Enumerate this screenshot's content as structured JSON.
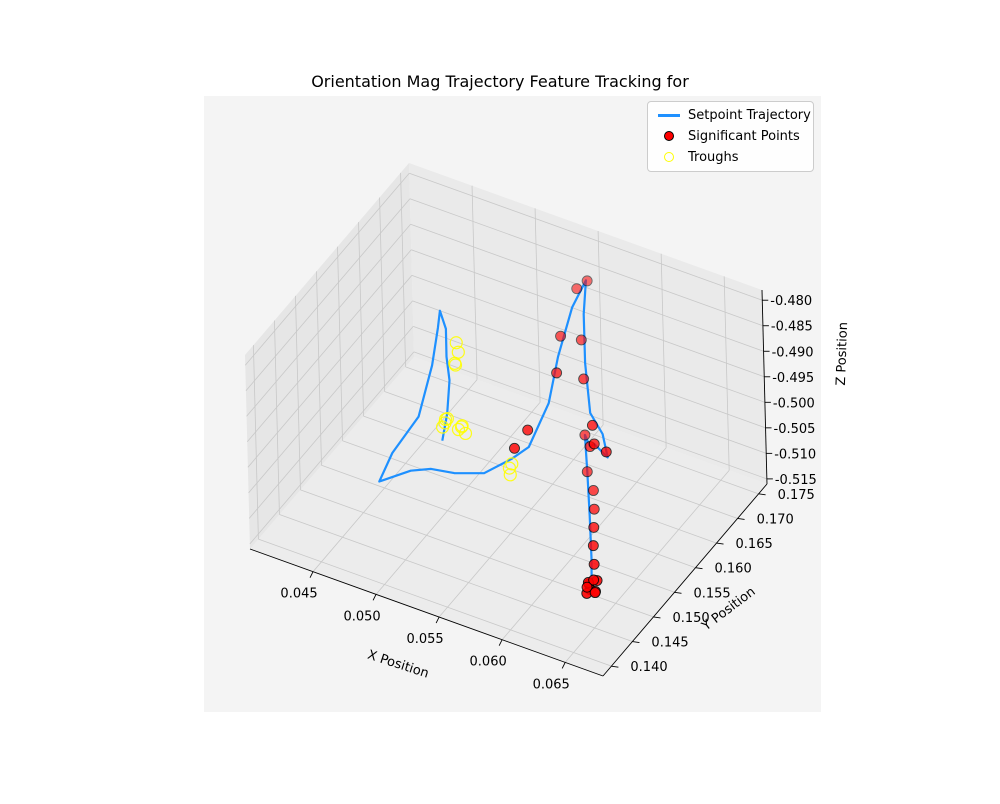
{
  "chart_data": {
    "type": "line3d",
    "title": "Orientation Mag Trajectory Feature Tracking for",
    "xlabel": "X Position",
    "ylabel": "Y Position",
    "zlabel": "Z Position",
    "xlim": [
      0.04,
      0.068
    ],
    "ylim": [
      0.138,
      0.177
    ],
    "zlim": [
      -0.516,
      -0.478
    ],
    "x_ticks": [
      "0.045",
      "0.050",
      "0.055",
      "0.060",
      "0.065"
    ],
    "y_ticks": [
      "0.140",
      "0.145",
      "0.150",
      "0.155",
      "0.160",
      "0.165",
      "0.170",
      "0.175"
    ],
    "z_ticks": [
      "-0.480",
      "-0.485",
      "-0.490",
      "-0.495",
      "-0.500",
      "-0.505",
      "-0.510",
      "-0.515"
    ],
    "legend_position": "top-right",
    "legend": [
      "Setpoint Trajectory",
      "Significant Points",
      "Troughs"
    ],
    "colors": {
      "trajectory": "#1e90ff",
      "significant": "#ff0000",
      "troughs": "#ffff00",
      "pane": "#ebebeb",
      "grid": "#c8c8c8"
    },
    "series": [
      {
        "name": "Setpoint Trajectory",
        "kind": "line",
        "points": [
          [
            0.0645,
            0.146,
            -0.51
          ],
          [
            0.0642,
            0.147,
            -0.505
          ],
          [
            0.0638,
            0.148,
            -0.498
          ],
          [
            0.063,
            0.15,
            -0.492
          ],
          [
            0.0615,
            0.154,
            -0.49
          ],
          [
            0.0605,
            0.158,
            -0.497
          ],
          [
            0.0598,
            0.161,
            -0.5
          ],
          [
            0.0605,
            0.162,
            -0.503
          ],
          [
            0.0598,
            0.163,
            -0.5
          ],
          [
            0.0585,
            0.164,
            -0.498
          ],
          [
            0.0575,
            0.166,
            -0.491
          ],
          [
            0.0568,
            0.168,
            -0.484
          ],
          [
            0.056,
            0.171,
            -0.481
          ],
          [
            0.0552,
            0.17,
            -0.486
          ],
          [
            0.055,
            0.167,
            -0.493
          ],
          [
            0.0552,
            0.164,
            -0.499
          ],
          [
            0.0549,
            0.16,
            -0.504
          ],
          [
            0.0542,
            0.158,
            -0.505
          ],
          [
            0.053,
            0.155,
            -0.506
          ],
          [
            0.052,
            0.151,
            -0.503
          ],
          [
            0.0512,
            0.148,
            -0.5
          ],
          [
            0.0506,
            0.145,
            -0.498
          ],
          [
            0.05,
            0.142,
            -0.497
          ],
          [
            0.0498,
            0.14,
            -0.496
          ],
          [
            0.0502,
            0.142,
            -0.492
          ],
          [
            0.051,
            0.146,
            -0.488
          ],
          [
            0.0508,
            0.15,
            -0.482
          ],
          [
            0.0503,
            0.153,
            -0.478
          ],
          [
            0.0498,
            0.155,
            -0.477
          ],
          [
            0.0492,
            0.158,
            -0.484
          ],
          [
            0.0485,
            0.16,
            -0.492
          ],
          [
            0.048,
            0.162,
            -0.499
          ],
          [
            0.0474,
            0.163,
            -0.507
          ],
          [
            0.0466,
            0.164,
            -0.514
          ]
        ]
      },
      {
        "name": "Significant Points",
        "kind": "scatter",
        "points": [
          [
            0.0643,
            0.146,
            -0.509
          ],
          [
            0.0644,
            0.146,
            -0.51
          ],
          [
            0.0646,
            0.147,
            -0.509
          ],
          [
            0.0641,
            0.146,
            -0.511
          ],
          [
            0.0648,
            0.146,
            -0.51
          ],
          [
            0.0639,
            0.147,
            -0.51
          ],
          [
            0.0645,
            0.1465,
            -0.5085
          ],
          [
            0.0642,
            0.1458,
            -0.5095
          ],
          [
            0.0647,
            0.1462,
            -0.5105
          ],
          [
            0.0644,
            0.147,
            -0.506
          ],
          [
            0.0642,
            0.1475,
            -0.503
          ],
          [
            0.0641,
            0.148,
            -0.5
          ],
          [
            0.064,
            0.1485,
            -0.497
          ],
          [
            0.0638,
            0.149,
            -0.494
          ],
          [
            0.063,
            0.15,
            -0.492
          ],
          [
            0.0615,
            0.154,
            -0.49
          ],
          [
            0.0605,
            0.158,
            -0.497
          ],
          [
            0.0598,
            0.161,
            -0.5
          ],
          [
            0.0604,
            0.162,
            -0.502
          ],
          [
            0.059,
            0.163,
            -0.499
          ],
          [
            0.0577,
            0.165,
            -0.493
          ],
          [
            0.0569,
            0.167,
            -0.488
          ],
          [
            0.0556,
            0.17,
            -0.482
          ],
          [
            0.0561,
            0.171,
            -0.481
          ],
          [
            0.0549,
            0.168,
            -0.49
          ],
          [
            0.0552,
            0.166,
            -0.495
          ],
          [
            0.0545,
            0.161,
            -0.502
          ],
          [
            0.0541,
            0.159,
            -0.504
          ]
        ]
      },
      {
        "name": "Troughs",
        "kind": "scatter",
        "points": [
          [
            0.047,
            0.163,
            -0.51
          ],
          [
            0.0472,
            0.163,
            -0.509
          ],
          [
            0.0474,
            0.163,
            -0.508
          ],
          [
            0.0476,
            0.162,
            -0.507
          ],
          [
            0.0488,
            0.161,
            -0.494
          ],
          [
            0.0492,
            0.16,
            -0.493
          ],
          [
            0.05,
            0.158,
            -0.503
          ],
          [
            0.0503,
            0.158,
            -0.502
          ],
          [
            0.0506,
            0.157,
            -0.501
          ],
          [
            0.0509,
            0.157,
            -0.502
          ],
          [
            0.05,
            0.158,
            -0.486
          ],
          [
            0.0498,
            0.159,
            -0.489
          ],
          [
            0.054,
            0.158,
            -0.507
          ],
          [
            0.0542,
            0.158,
            -0.506
          ],
          [
            0.0544,
            0.157,
            -0.507
          ]
        ]
      }
    ]
  }
}
